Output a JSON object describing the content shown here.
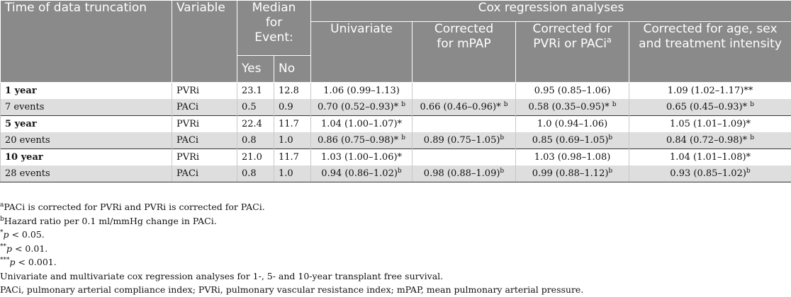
{
  "header": {
    "time": "Time of data truncation",
    "variable": "Variable",
    "median_line1": "Median",
    "median_line2": "for",
    "median_line3": "Event:",
    "yes": "Yes",
    "no": "No",
    "cox": "Cox regression analyses",
    "univariate": "Univariate",
    "mpap_line1": "Corrected",
    "mpap_line2": "for mPAP",
    "pvri_line1": "Corrected for",
    "pvri_line2": "PVRi or PACi",
    "pvri_sup": "a",
    "age_line1": "Corrected for age, sex",
    "age_line2": "and treatment intensity"
  },
  "rows": [
    {
      "time": "1 year",
      "var": "PVRi",
      "yes": "23.1",
      "no": "12.8",
      "uni": "1.06 (0.99–1.13)",
      "uni_sup": "",
      "mpap": "",
      "mpap_sup": "",
      "corr": "0.95 (0.85–1.06)",
      "corr_sup": "",
      "age": "1.09 (1.02–1.17)**",
      "age_sup": ""
    },
    {
      "time": "7 events",
      "var": "PACi",
      "yes": "0.5",
      "no": "0.9",
      "uni": "0.70 (0.52–0.93)*",
      "uni_sup": "b",
      "mpap": "0.66 (0.46–0.96)*",
      "mpap_sup": "b",
      "corr": "0.58 (0.35–0.95)*",
      "corr_sup": "b",
      "age": "0.65 (0.45–0.93)*",
      "age_sup": "b"
    },
    {
      "time": "5 year",
      "var": "PVRi",
      "yes": "22.4",
      "no": "11.7",
      "uni": "1.04 (1.00–1.07)*",
      "uni_sup": "",
      "mpap": "",
      "mpap_sup": "",
      "corr": "1.0 (0.94–1.06)",
      "corr_sup": "",
      "age": "1.05 (1.01–1.09)*",
      "age_sup": ""
    },
    {
      "time": "20 events",
      "var": "PACi",
      "yes": "0.8",
      "no": "1.0",
      "uni": "0.86 (0.75–0.98)*",
      "uni_sup": "b",
      "mpap": "0.89 (0.75–1.05)",
      "mpap_sup": "b",
      "corr": "0.85 (0.69–1.05)",
      "corr_sup": "b",
      "age": "0.84 (0.72–0.98)*",
      "age_sup": "b"
    },
    {
      "time": "10 year",
      "var": "PVRi",
      "yes": "21.0",
      "no": "11.7",
      "uni": "1.03 (1.00–1.06)*",
      "uni_sup": "",
      "mpap": "",
      "mpap_sup": "",
      "corr": "1.03 (0.98–1.08)",
      "corr_sup": "",
      "age": "1.04 (1.01–1.08)*",
      "age_sup": ""
    },
    {
      "time": "28 events",
      "var": "PACi",
      "yes": "0.8",
      "no": "1.0",
      "uni": "0.94 (0.86–1.02)",
      "uni_sup": "b",
      "mpap": "0.98 (0.88–1.09)",
      "mpap_sup": "b",
      "corr": "0.99 (0.88–1.12)",
      "corr_sup": "b",
      "age": "0.93 (0.85–1.02)",
      "age_sup": "b"
    }
  ],
  "footnotes": {
    "a_mark": "a",
    "a_text": "PACi is corrected for PVRi and PVRi is corrected for PACi.",
    "b_mark": "b",
    "b_text": "Hazard ratio per 0.1 ml/mmHg change in PACi.",
    "p1_stars": "*",
    "p1_p": "p",
    "p1_rest": " < 0.05.",
    "p2_stars": "**",
    "p2_p": "p",
    "p2_rest": " < 0.01.",
    "p3_stars": "***",
    "p3_p": "p",
    "p3_rest": " < 0.001.",
    "caption": "Univariate and multivariate cox regression analyses for 1-, 5- and 10-year transplant free survival.",
    "abbrev": "PACi, pulmonary arterial compliance index; PVRi, pulmonary vascular resistance index; mPAP, mean pulmonary arterial pressure."
  }
}
